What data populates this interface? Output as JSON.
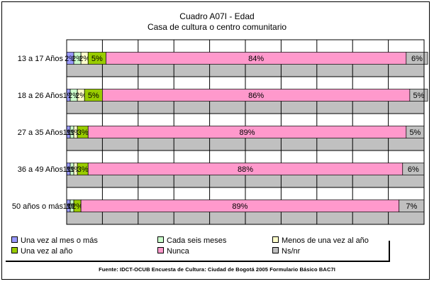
{
  "title_line1": "Cuadro A07I - Edad",
  "title_line2": "Casa de cultura o centro comunitario",
  "source": "Fuente: IDCT-OCUB Encuesta de Cultura: Ciudad de Bogotá 2005 Formulario Básico BAC7I",
  "chart_data": {
    "type": "bar",
    "orientation": "horizontal",
    "stacked": "percent",
    "title": "Cuadro A07I - Edad",
    "subtitle": "Casa de cultura o centro comunitario",
    "categories": [
      "13 a 17 Años",
      "18 a 26 Años",
      "27 a 35 Años",
      "36 a 49 Años",
      "50 años o más"
    ],
    "xlim": [
      0,
      100
    ],
    "grid": true,
    "legend_position": "bottom",
    "series": [
      {
        "name": "Una vez al mes o más",
        "color": "#9999ff",
        "values": [
          2,
          1,
          1,
          1,
          1
        ],
        "labels": [
          "2%",
          "1%",
          "1%",
          "1%",
          "1%"
        ]
      },
      {
        "name": "Cada seis meses",
        "color": "#ccffcc",
        "values": [
          2,
          2,
          1,
          1,
          1
        ],
        "labels": [
          "2%",
          "2%",
          "1%",
          "1%",
          "1%"
        ]
      },
      {
        "name": "Menos de una vez al año",
        "color": "#ffffcc",
        "values": [
          2,
          2,
          1,
          1,
          0
        ],
        "labels": [
          "2%",
          "2%",
          "1%",
          "1%",
          "0%"
        ]
      },
      {
        "name": "Una vez al año",
        "color": "#99cc00",
        "values": [
          5,
          5,
          3,
          3,
          2
        ],
        "labels": [
          "5%",
          "5%",
          "3%",
          "3%",
          "2%"
        ]
      },
      {
        "name": "Nunca",
        "color": "#ff99cc",
        "values": [
          84,
          86,
          89,
          88,
          89
        ],
        "labels": [
          "84%",
          "86%",
          "89%",
          "88%",
          "89%"
        ]
      },
      {
        "name": "Ns/nr",
        "color": "#c0c0c0",
        "values": [
          6,
          5,
          5,
          6,
          7
        ],
        "labels": [
          "6%",
          "5%",
          "5%",
          "6%",
          "7%"
        ]
      }
    ]
  }
}
